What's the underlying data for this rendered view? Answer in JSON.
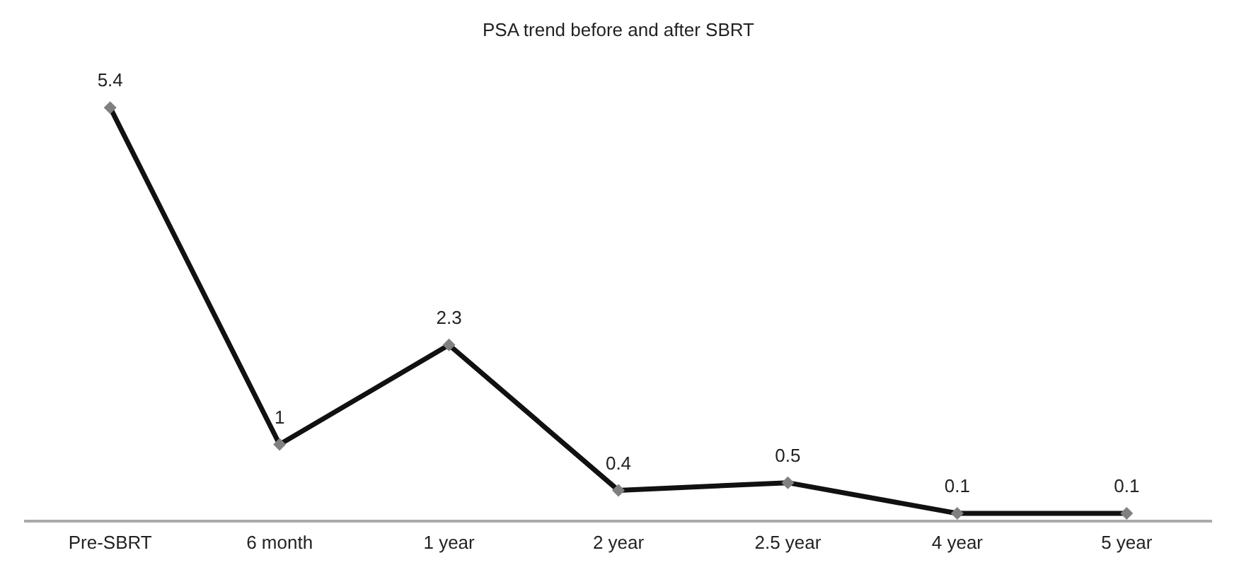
{
  "chart_data": {
    "type": "line",
    "title": "PSA trend before and after SBRT",
    "categories": [
      "Pre-SBRT",
      "6 month",
      "1 year",
      "2 year",
      "2.5 year",
      "4 year",
      "5 year"
    ],
    "series": [
      {
        "color": "#111111",
        "values": [
          5.4,
          1,
          2.3,
          0.4,
          0.5,
          0.1,
          0.1
        ]
      }
    ],
    "data_labels": true,
    "marker": "diamond",
    "line_style": "solid",
    "grid": false,
    "legend": false
  }
}
